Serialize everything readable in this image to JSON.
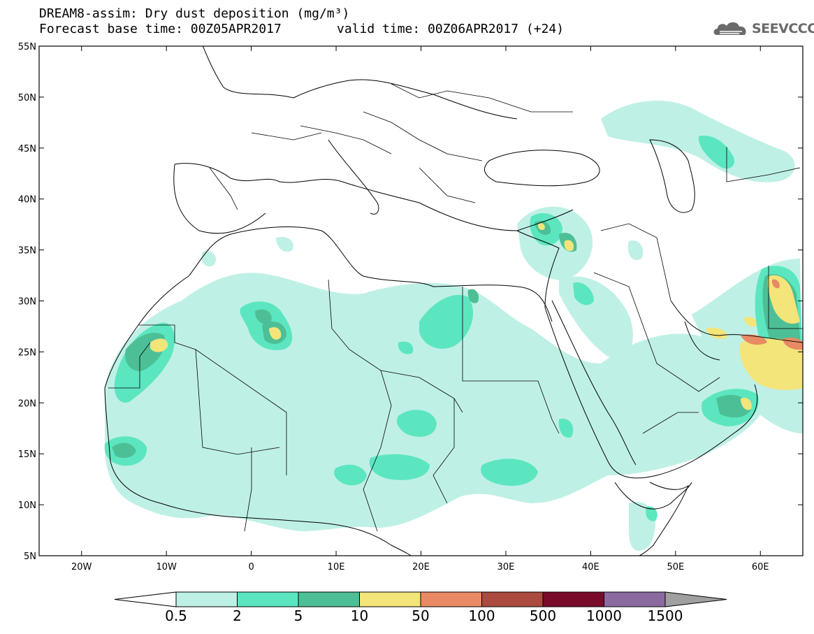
{
  "header": {
    "title_line1": "DREAM8-assim: Dry dust deposition (mg/m³)",
    "title_line2": "Forecast base time: 00Z05APR2017",
    "valid_time": "valid time: 00Z06APR2017 (+24)",
    "logo_text": "SEEVCCC",
    "logo_icon": "cloud-icon"
  },
  "map": {
    "lat_labels": [
      "55N",
      "50N",
      "45N",
      "40N",
      "35N",
      "30N",
      "25N",
      "20N",
      "15N",
      "10N",
      "5N"
    ],
    "lon_labels": [
      "20W",
      "10W",
      "0",
      "10E",
      "20E",
      "30E",
      "40E",
      "50E",
      "60E"
    ],
    "lat_values": [
      55,
      50,
      45,
      40,
      35,
      30,
      25,
      20,
      15,
      10,
      5
    ],
    "lon_values": [
      -20,
      -10,
      0,
      10,
      20,
      30,
      40,
      50,
      60
    ],
    "extent": {
      "lon_min": -25,
      "lon_max": 65,
      "lat_min": 5,
      "lat_max": 55
    }
  },
  "legend": {
    "labels": [
      "0.5",
      "2",
      "5",
      "10",
      "50",
      "100",
      "500",
      "1000",
      "1500"
    ],
    "colors": [
      "#bff0e6",
      "#5ce6c0",
      "#4dbf96",
      "#f3e57a",
      "#e88a64",
      "#ab4a3f",
      "#7a0a2a",
      "#8a6ba0"
    ],
    "end_colors": {
      "low": "#ffffff",
      "high": "#a0a0a0"
    }
  }
}
